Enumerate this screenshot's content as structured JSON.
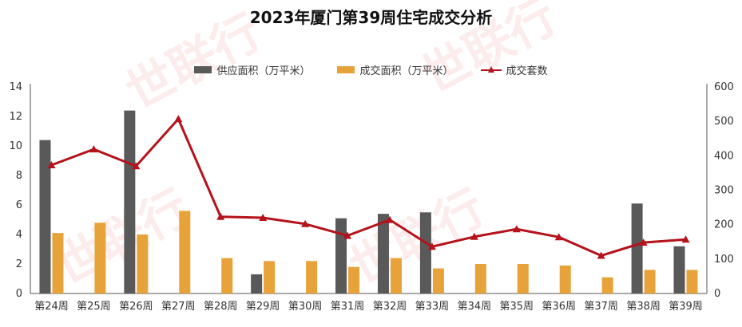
{
  "title": "2023年厦门第39周住宅成交分析",
  "watermark_text": "世联行",
  "chart_data": {
    "type": "bar",
    "categories": [
      "第24周",
      "第25周",
      "第26周",
      "第27周",
      "第28周",
      "第29周",
      "第30周",
      "第31周",
      "第32周",
      "第33周",
      "第34周",
      "第35周",
      "第36周",
      "第37周",
      "第38周",
      "第39周"
    ],
    "series": [
      {
        "name": "供应面积（万平米）",
        "type": "bar",
        "axis": "left",
        "color": "#595959",
        "values": [
          10.4,
          null,
          12.4,
          null,
          null,
          1.3,
          null,
          5.1,
          5.4,
          5.5,
          null,
          null,
          null,
          null,
          6.1,
          3.2
        ]
      },
      {
        "name": "成交面积（万平米）",
        "type": "bar",
        "axis": "left",
        "color": "#e8a23a",
        "values": [
          4.1,
          4.8,
          4.0,
          5.6,
          2.4,
          2.2,
          2.2,
          1.8,
          2.4,
          1.7,
          2.0,
          2.0,
          1.9,
          1.1,
          1.6,
          1.6
        ]
      },
      {
        "name": "成交套数",
        "type": "line",
        "axis": "right",
        "color": "#b5121b",
        "values": [
          373,
          419,
          370,
          507,
          223,
          220,
          202,
          168,
          214,
          136,
          165,
          187,
          164,
          110,
          148,
          157
        ]
      }
    ],
    "y_left": {
      "min": 0,
      "max": 14,
      "ticks": [
        0,
        2,
        4,
        6,
        8,
        10,
        12,
        14
      ]
    },
    "y_right": {
      "min": 0,
      "max": 600,
      "ticks": [
        0,
        100,
        200,
        300,
        400,
        500,
        600
      ]
    },
    "legend_position": "top-center",
    "grid": false
  }
}
